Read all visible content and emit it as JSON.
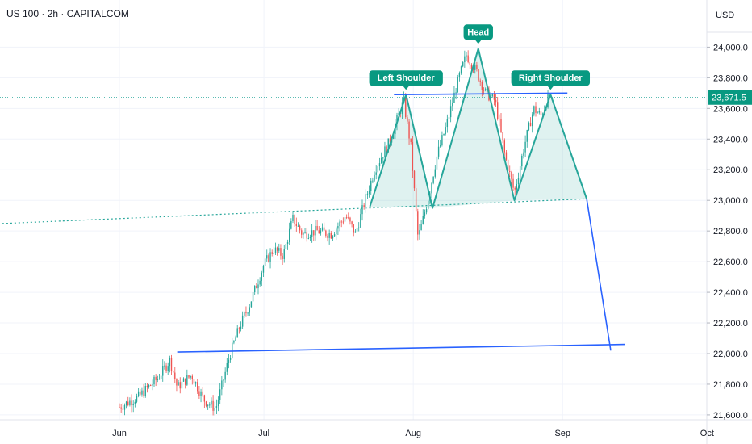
{
  "header": {
    "symbol": "US 100 · 2h · CAPITALCOM",
    "currency": "USD"
  },
  "chart_data": {
    "type": "line",
    "instrument": "US 100",
    "interval": "2h",
    "source": "CAPITALCOM",
    "price_axis_currency": "USD",
    "y_ticks": [
      21600,
      21800,
      22000,
      22200,
      22400,
      22600,
      22800,
      23000,
      23200,
      23400,
      23600,
      23800,
      24000
    ],
    "x_ticks": [
      "Jun",
      "Jul",
      "Aug",
      "Sep",
      "Oct"
    ],
    "last_price": "23,671.5",
    "series": [
      {
        "values": [
          [
            "2025-06-01T00:00",
            21650
          ],
          [
            "2025-06-05T00:00",
            21720
          ],
          [
            "2025-06-09T00:00",
            21840
          ],
          [
            "2025-06-11T12:00",
            21960
          ],
          [
            "2025-06-13T00:00",
            21780
          ],
          [
            "2025-06-16T00:00",
            21860
          ],
          [
            "2025-06-18T12:00",
            21700
          ],
          [
            "2025-06-21T00:00",
            21640
          ],
          [
            "2025-06-24T00:00",
            22000
          ],
          [
            "2025-06-26T00:00",
            22180
          ],
          [
            "2025-06-28T00:00",
            22320
          ],
          [
            "2025-07-01T00:00",
            22580
          ],
          [
            "2025-07-03T00:00",
            22680
          ],
          [
            "2025-07-05T00:00",
            22640
          ],
          [
            "2025-07-07T00:00",
            22880
          ],
          [
            "2025-07-09T00:00",
            22780
          ],
          [
            "2025-07-12T00:00",
            22800
          ],
          [
            "2025-07-15T00:00",
            22780
          ],
          [
            "2025-07-18T00:00",
            22900
          ],
          [
            "2025-07-20T00:00",
            22780
          ],
          [
            "2025-07-22T00:00",
            23000
          ],
          [
            "2025-07-24T00:00",
            23200
          ],
          [
            "2025-07-27T00:00",
            23380
          ],
          [
            "2025-07-30T00:00",
            23650
          ],
          [
            "2025-07-31T12:00",
            23350
          ],
          [
            "2025-08-02T00:00",
            22750
          ],
          [
            "2025-08-04T00:00",
            23000
          ],
          [
            "2025-08-06T00:00",
            23300
          ],
          [
            "2025-08-08T00:00",
            23500
          ],
          [
            "2025-08-10T00:00",
            23750
          ],
          [
            "2025-08-12T00:00",
            23950
          ],
          [
            "2025-08-14T00:00",
            23850
          ],
          [
            "2025-08-16T00:00",
            23700
          ],
          [
            "2025-08-18T00:00",
            23650
          ],
          [
            "2025-08-20T00:00",
            23300
          ],
          [
            "2025-08-22T00:00",
            23050
          ],
          [
            "2025-08-24T00:00",
            23350
          ],
          [
            "2025-08-26T00:00",
            23600
          ],
          [
            "2025-08-27T12:00",
            23550
          ],
          [
            "2025-08-29T00:00",
            23671.5
          ]
        ]
      }
    ],
    "annotations": [
      {
        "text": "Left Shoulder",
        "x": "2025-07-30T12:00",
        "y": 23690
      },
      {
        "text": "Head",
        "x": "2025-08-14T12:00",
        "y": 23990
      },
      {
        "text": "Right Shoulder",
        "x": "2025-08-29T12:00",
        "y": 23690
      }
    ],
    "pattern_lines": {
      "zigzag": [
        [
          "2025-07-23T00:00",
          22960
        ],
        [
          "2025-07-30T12:00",
          23690
        ],
        [
          "2025-08-05T00:00",
          22950
        ],
        [
          "2025-08-14T12:00",
          23990
        ],
        [
          "2025-08-22T00:00",
          23000
        ],
        [
          "2025-08-29T12:00",
          23690
        ],
        [
          "2025-09-06T00:00",
          23010
        ]
      ],
      "neckline_dotted": [
        [
          "2025-05-01T00:00",
          22840
        ],
        [
          "2025-09-06T00:00",
          23010
        ]
      ],
      "resistance": [
        [
          "2025-07-28T00:00",
          23690
        ],
        [
          "2025-09-02T00:00",
          23700
        ]
      ],
      "support": [
        [
          "2025-06-13T00:00",
          22010
        ],
        [
          "2025-09-14T00:00",
          22060
        ]
      ],
      "projection": [
        [
          "2025-09-06T00:00",
          23010
        ],
        [
          "2025-09-11T00:00",
          22020
        ]
      ]
    },
    "colors": {
      "pattern": "#26a69a",
      "trendline": "#2962ff",
      "label_bg": "#089981",
      "candle_up": "#26a69a",
      "candle_down": "#ef5350"
    },
    "grid": true
  }
}
